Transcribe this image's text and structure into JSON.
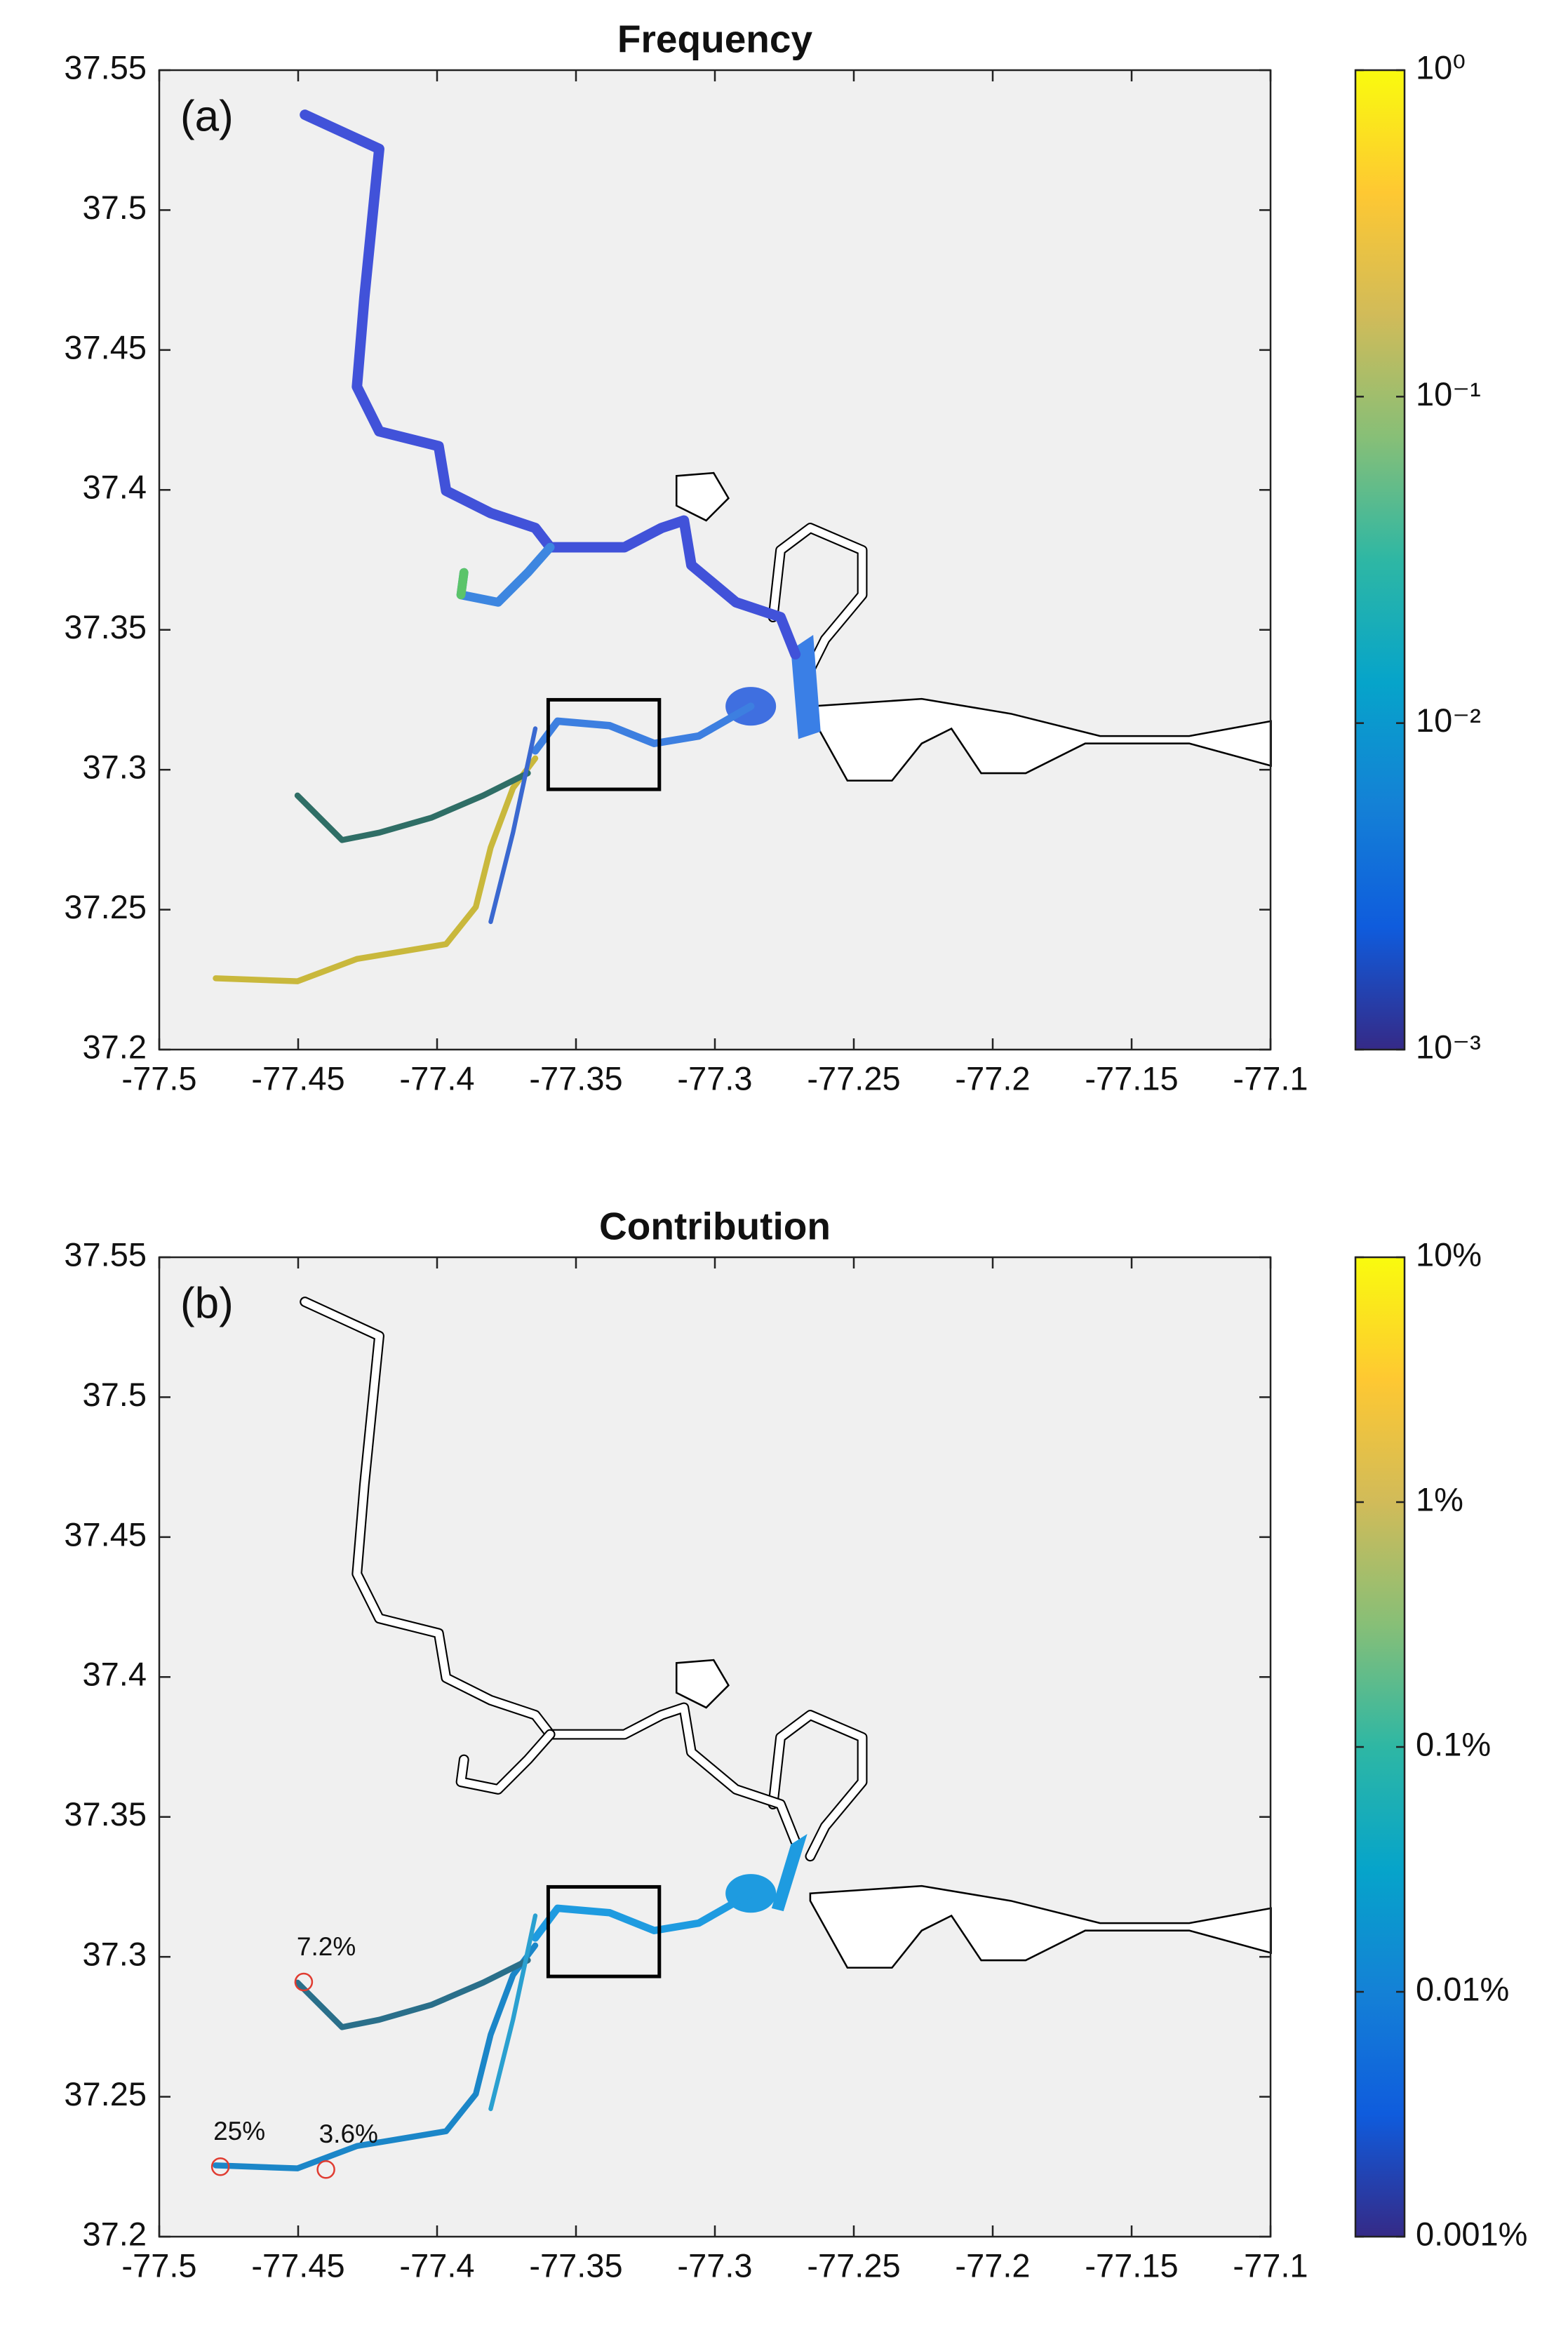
{
  "chart_data": [
    {
      "type": "map",
      "title": "Frequency",
      "panel_label": "(a)",
      "xlim": [
        -77.5,
        -77.1
      ],
      "xticks": [
        -77.5,
        -77.45,
        -77.4,
        -77.35,
        -77.3,
        -77.25,
        -77.2,
        -77.15,
        -77.1
      ],
      "ylim": [
        37.2,
        37.55
      ],
      "yticks": [
        37.2,
        37.25,
        37.3,
        37.35,
        37.4,
        37.45,
        37.5,
        37.55
      ],
      "box": {
        "x": [
          -77.36,
          -77.32
        ],
        "y": [
          37.293,
          37.325
        ]
      },
      "colorbar": {
        "log_scale": true,
        "lim": [
          0.001,
          1
        ],
        "ticks": [
          {
            "value": 0.001,
            "label": "10⁻³"
          },
          {
            "value": 0.01,
            "label": "10⁻²"
          },
          {
            "value": 0.1,
            "label": "10⁻¹"
          },
          {
            "value": 1,
            "label": "10⁰"
          }
        ],
        "colormap": [
          "#352a87",
          "#0f5cdd",
          "#1481d6",
          "#06a4ca",
          "#2eb7a4",
          "#87bf77",
          "#d1bb59",
          "#fec832",
          "#f9fb0e"
        ]
      }
    },
    {
      "type": "map",
      "title": "Contribution",
      "panel_label": "(b)",
      "xlim": [
        -77.5,
        -77.1
      ],
      "xticks": [
        -77.5,
        -77.45,
        -77.4,
        -77.35,
        -77.3,
        -77.25,
        -77.2,
        -77.15,
        -77.1
      ],
      "ylim": [
        37.2,
        37.55
      ],
      "yticks": [
        37.2,
        37.25,
        37.3,
        37.35,
        37.4,
        37.45,
        37.5,
        37.55
      ],
      "box": {
        "x": [
          -77.36,
          -77.32
        ],
        "y": [
          37.293,
          37.325
        ]
      },
      "points": {
        "x": [
          -77.448,
          -77.478,
          -77.44
        ],
        "y": [
          37.291,
          37.225,
          37.224
        ],
        "values": [
          7.2,
          25,
          3.6
        ],
        "value_labels": [
          "7.2%",
          "25%",
          "3.6%"
        ],
        "color": "#e03c31"
      },
      "colorbar": {
        "log_scale": true,
        "lim": [
          0.001,
          10
        ],
        "ticks": [
          {
            "value": 0.001,
            "label": "0.001%"
          },
          {
            "value": 0.01,
            "label": "0.01%"
          },
          {
            "value": 0.1,
            "label": "0.1%"
          },
          {
            "value": 1,
            "label": "1%"
          },
          {
            "value": 10,
            "label": "10%"
          }
        ],
        "colormap": [
          "#352a87",
          "#0f5cdd",
          "#1481d6",
          "#06a4ca",
          "#2eb7a4",
          "#87bf77",
          "#d1bb59",
          "#fec832",
          "#f9fb0e"
        ]
      }
    }
  ]
}
